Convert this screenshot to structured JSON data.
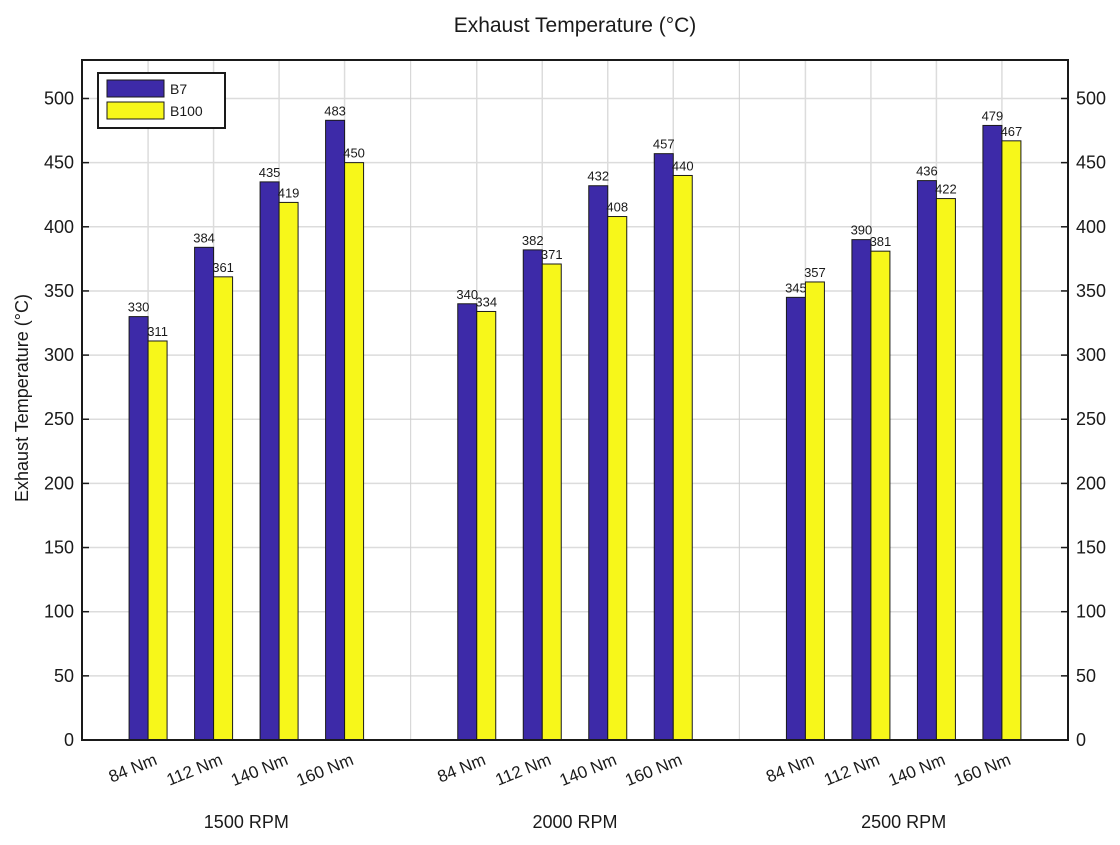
{
  "chart_data": {
    "type": "bar",
    "title": "Exhaust Temperature (°C)",
    "ylabel": "Exhaust Temperature (°C)",
    "xlabel": "",
    "ylim": [
      0,
      530
    ],
    "yticks": [
      0,
      50,
      100,
      150,
      200,
      250,
      300,
      350,
      400,
      450,
      500
    ],
    "grid": true,
    "legend_position": "top-left",
    "groups": [
      {
        "label": "1500 RPM",
        "categories": [
          "84 Nm",
          "112 Nm",
          "140 Nm",
          "160 Nm"
        ]
      },
      {
        "label": "2000 RPM",
        "categories": [
          "84 Nm",
          "112 Nm",
          "140 Nm",
          "160 Nm"
        ]
      },
      {
        "label": "2500 RPM",
        "categories": [
          "84 Nm",
          "112 Nm",
          "140 Nm",
          "160 Nm"
        ]
      }
    ],
    "series": [
      {
        "name": "B7",
        "color": "#3d2aa8",
        "values": [
          330,
          384,
          435,
          483,
          340,
          382,
          432,
          457,
          345,
          390,
          436,
          479
        ]
      },
      {
        "name": "B100",
        "color": "#f7f71a",
        "values": [
          311,
          361,
          419,
          450,
          334,
          371,
          408,
          440,
          357,
          381,
          422,
          467
        ]
      }
    ]
  }
}
